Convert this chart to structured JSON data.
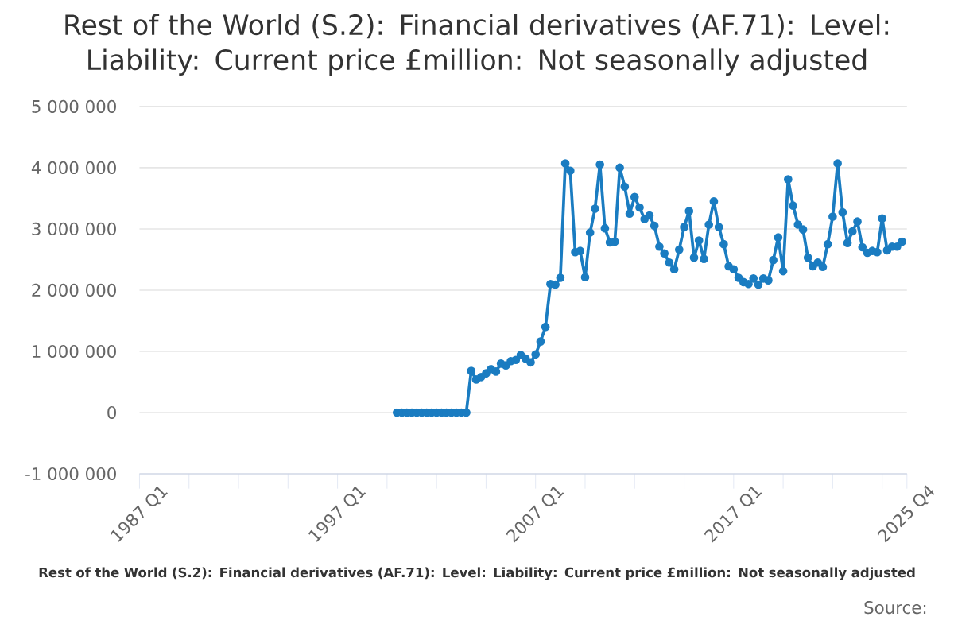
{
  "chart_data": {
    "type": "line",
    "title": "Rest of the World (S.2): Financial derivatives (AF.71): Level: Liability: Current price £million: Not seasonally adjusted",
    "annotations": [
      "Rest of the World (S.2): Financial derivatives (AF.71): Level: Liability: Current price £million: Not seasonally adjusted",
      "Source:"
    ],
    "categories": [
      "1987 Q1",
      null,
      null,
      null,
      null,
      null,
      null,
      null,
      null,
      null,
      null,
      null,
      null,
      null,
      null,
      null,
      null,
      null,
      null,
      null,
      null,
      null,
      null,
      null,
      null,
      null,
      null,
      null,
      null,
      null,
      null,
      null,
      null,
      null,
      null,
      null,
      null,
      null,
      null,
      null,
      "1997 Q1",
      null,
      null,
      null,
      null,
      null,
      null,
      null,
      null,
      null,
      null,
      null,
      null,
      null,
      null,
      null,
      null,
      null,
      null,
      null,
      null,
      null,
      null,
      null,
      null,
      null,
      null,
      null,
      null,
      null,
      null,
      null,
      null,
      null,
      null,
      null,
      null,
      null,
      null,
      null,
      "2007 Q1",
      null,
      null,
      null,
      null,
      null,
      null,
      null,
      null,
      null,
      null,
      null,
      null,
      null,
      null,
      null,
      null,
      null,
      null,
      null,
      null,
      null,
      null,
      null,
      null,
      null,
      null,
      null,
      null,
      null,
      null,
      null,
      null,
      null,
      null,
      null,
      null,
      null,
      null,
      null,
      "2017 Q1",
      null,
      null,
      null,
      null,
      null,
      null,
      null,
      null,
      null,
      null,
      null,
      null,
      null,
      null,
      null,
      null,
      null,
      null,
      null,
      null,
      null,
      null,
      null,
      null,
      null,
      null,
      null,
      null,
      null,
      null,
      null,
      null,
      null,
      null,
      "2025 Q4"
    ],
    "values": [
      null,
      null,
      null,
      null,
      null,
      null,
      null,
      null,
      null,
      null,
      null,
      null,
      null,
      null,
      null,
      null,
      null,
      null,
      null,
      null,
      null,
      null,
      null,
      null,
      null,
      null,
      null,
      null,
      null,
      null,
      null,
      null,
      null,
      null,
      null,
      null,
      null,
      null,
      null,
      null,
      null,
      null,
      null,
      null,
      null,
      null,
      null,
      null,
      null,
      null,
      null,
      null,
      0,
      0,
      0,
      0,
      0,
      0,
      0,
      0,
      0,
      0,
      0,
      0,
      0,
      0,
      0,
      680000,
      540000,
      580000,
      640000,
      710000,
      670000,
      800000,
      770000,
      840000,
      860000,
      940000,
      880000,
      820000,
      950000,
      1160000,
      1400000,
      2100000,
      2090000,
      2200000,
      4070000,
      3950000,
      2620000,
      2640000,
      2210000,
      2940000,
      3330000,
      4050000,
      3010000,
      2780000,
      2790000,
      4000000,
      3690000,
      3250000,
      3520000,
      3350000,
      3160000,
      3220000,
      3050000,
      2710000,
      2600000,
      2450000,
      2340000,
      2660000,
      3030000,
      3290000,
      2530000,
      2810000,
      2510000,
      3070000,
      3450000,
      3030000,
      2750000,
      2390000,
      2340000,
      2200000,
      2130000,
      2100000,
      2190000,
      2090000,
      2190000,
      2160000,
      2490000,
      2860000,
      2310000,
      3810000,
      3380000,
      3070000,
      2990000,
      2530000,
      2390000,
      2450000,
      2380000,
      2750000,
      3200000,
      4070000,
      3270000,
      2770000,
      2960000,
      3120000,
      2700000,
      2610000,
      2640000,
      2620000,
      3170000,
      2650000,
      2710000,
      2710000,
      2790000,
      null
    ],
    "color": "#1a7cc1",
    "marker": "circle",
    "line_style": "solid",
    "grid": "y",
    "ylim": [
      -1000000,
      5000000
    ],
    "yticks": [
      {
        "value": -1000000,
        "label": "-1 000 000"
      },
      {
        "value": 0,
        "label": "0"
      },
      {
        "value": 1000000,
        "label": "1 000 000"
      },
      {
        "value": 2000000,
        "label": "2 000 000"
      },
      {
        "value": 3000000,
        "label": "3 000 000"
      },
      {
        "value": 4000000,
        "label": "4 000 000"
      },
      {
        "value": 5000000,
        "label": "5 000 000"
      }
    ]
  }
}
